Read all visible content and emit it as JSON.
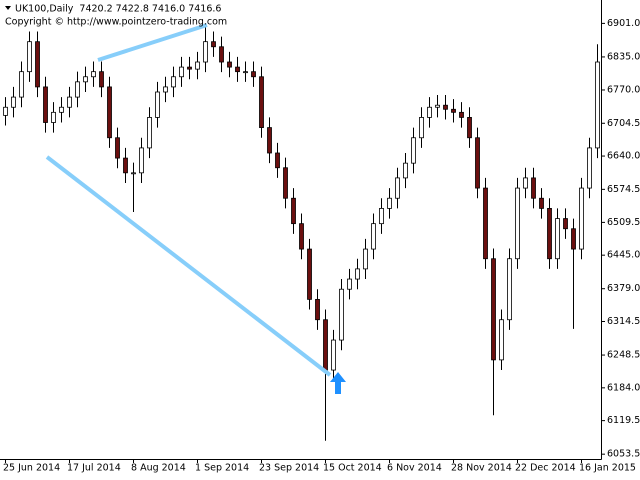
{
  "chart_data": {
    "type": "candlestick",
    "title": "UK100,Daily  7420.2 7422.8 7416.0 7416.6",
    "subtitle": "Copyright © http://www.pointzero-trading.com",
    "categories": [
      "25 Jun 2014",
      null,
      null,
      null,
      null,
      null,
      null,
      null,
      "17 Jul 2014",
      null,
      null,
      null,
      null,
      null,
      null,
      null,
      "8 Aug 2014",
      null,
      null,
      null,
      null,
      null,
      null,
      null,
      "1 Sep 2014",
      null,
      null,
      null,
      null,
      null,
      null,
      null,
      "23 Sep 2014",
      null,
      null,
      null,
      null,
      null,
      null,
      null,
      "15 Oct 2014",
      null,
      null,
      null,
      null,
      null,
      null,
      null,
      "6 Nov 2014",
      null,
      null,
      null,
      null,
      null,
      null,
      null,
      "28 Nov 2014",
      null,
      null,
      null,
      null,
      null,
      null,
      null,
      "22 Dec 2014",
      null,
      null,
      null,
      null,
      null,
      null,
      null,
      "16 Jan 2015",
      null,
      null
    ],
    "open": [
      6720,
      6736,
      6756,
      6806,
      6865,
      6776,
      6706,
      6726,
      6736,
      6756,
      6786,
      6796,
      6806,
      6776,
      6676,
      6636,
      6607,
      6607,
      6656,
      6716,
      6766,
      6776,
      6796,
      6815,
      6811,
      6825,
      6865,
      6855,
      6825,
      6815,
      6806,
      6806,
      6796,
      6696,
      6646,
      6617,
      6557,
      6507,
      6457,
      6358,
      6318,
      6219,
      6278,
      6378,
      6398,
      6418,
      6457,
      6507,
      6537,
      6557,
      6597,
      6626,
      6676,
      6716,
      6736,
      6740,
      6732,
      6726,
      6716,
      6676,
      6577,
      6438,
      6239,
      6318,
      6438,
      6577,
      6597,
      6557,
      6537,
      6438,
      6517,
      6497,
      6457,
      6577,
      6656
    ],
    "high": [
      6756,
      6776,
      6826,
      6885,
      6885,
      6796,
      6746,
      6756,
      6776,
      6806,
      6816,
      6826,
      6826,
      6796,
      6696,
      6656,
      6627,
      6676,
      6736,
      6786,
      6796,
      6816,
      6835,
      6835,
      6845,
      6901,
      6885,
      6875,
      6845,
      6835,
      6826,
      6826,
      6816,
      6716,
      6666,
      6637,
      6577,
      6527,
      6477,
      6378,
      6338,
      6298,
      6398,
      6418,
      6438,
      6477,
      6527,
      6557,
      6577,
      6617,
      6646,
      6696,
      6736,
      6756,
      6760,
      6760,
      6752,
      6746,
      6736,
      6696,
      6597,
      6458,
      6338,
      6458,
      6597,
      6617,
      6617,
      6577,
      6557,
      6537,
      6537,
      6517,
      6597,
      6676,
      6860
    ],
    "low": [
      6700,
      6716,
      6736,
      6786,
      6756,
      6686,
      6686,
      6706,
      6716,
      6736,
      6766,
      6776,
      6756,
      6656,
      6616,
      6587,
      6530,
      6587,
      6636,
      6696,
      6746,
      6756,
      6776,
      6791,
      6791,
      6805,
      6835,
      6805,
      6795,
      6786,
      6786,
      6776,
      6676,
      6626,
      6597,
      6537,
      6487,
      6437,
      6338,
      6298,
      6080,
      6199,
      6258,
      6358,
      6378,
      6398,
      6437,
      6487,
      6517,
      6537,
      6577,
      6606,
      6656,
      6696,
      6716,
      6712,
      6706,
      6696,
      6656,
      6557,
      6418,
      6130,
      6219,
      6298,
      6418,
      6557,
      6537,
      6517,
      6418,
      6418,
      6477,
      6300,
      6437,
      6557,
      6636
    ],
    "close": [
      6736,
      6756,
      6806,
      6865,
      6776,
      6706,
      6726,
      6736,
      6756,
      6786,
      6796,
      6806,
      6776,
      6676,
      6636,
      6607,
      6607,
      6656,
      6716,
      6766,
      6776,
      6796,
      6815,
      6811,
      6825,
      6865,
      6855,
      6825,
      6815,
      6806,
      6806,
      6796,
      6696,
      6646,
      6617,
      6557,
      6507,
      6457,
      6358,
      6318,
      6219,
      6278,
      6378,
      6398,
      6418,
      6457,
      6507,
      6537,
      6557,
      6597,
      6626,
      6676,
      6716,
      6736,
      6740,
      6732,
      6726,
      6716,
      6676,
      6577,
      6438,
      6239,
      6318,
      6438,
      6577,
      6597,
      6557,
      6537,
      6438,
      6517,
      6497,
      6457,
      6577,
      6656,
      6825
    ],
    "up_color": "#ffffff",
    "down_color": "#6b0f0f",
    "ylim": [
      6044,
      6947
    ],
    "yticks": [
      {
        "value": 6901,
        "label": "6901.0"
      },
      {
        "value": 6835,
        "label": "6835.0"
      },
      {
        "value": 6770,
        "label": "6770.0"
      },
      {
        "value": 6704.5,
        "label": "6704.5"
      },
      {
        "value": 6640,
        "label": "6640.0"
      },
      {
        "value": 6574.5,
        "label": "6574.5"
      },
      {
        "value": 6509.5,
        "label": "6509.5"
      },
      {
        "value": 6445,
        "label": "6445.0"
      },
      {
        "value": 6379,
        "label": "6379.0"
      },
      {
        "value": 6314.5,
        "label": "6314.5"
      },
      {
        "value": 6248.5,
        "label": "6248.5"
      },
      {
        "value": 6184,
        "label": "6184.0"
      },
      {
        "value": 6119.5,
        "label": "6119.5"
      },
      {
        "value": 6053.5,
        "label": "6053.5"
      }
    ]
  }
}
